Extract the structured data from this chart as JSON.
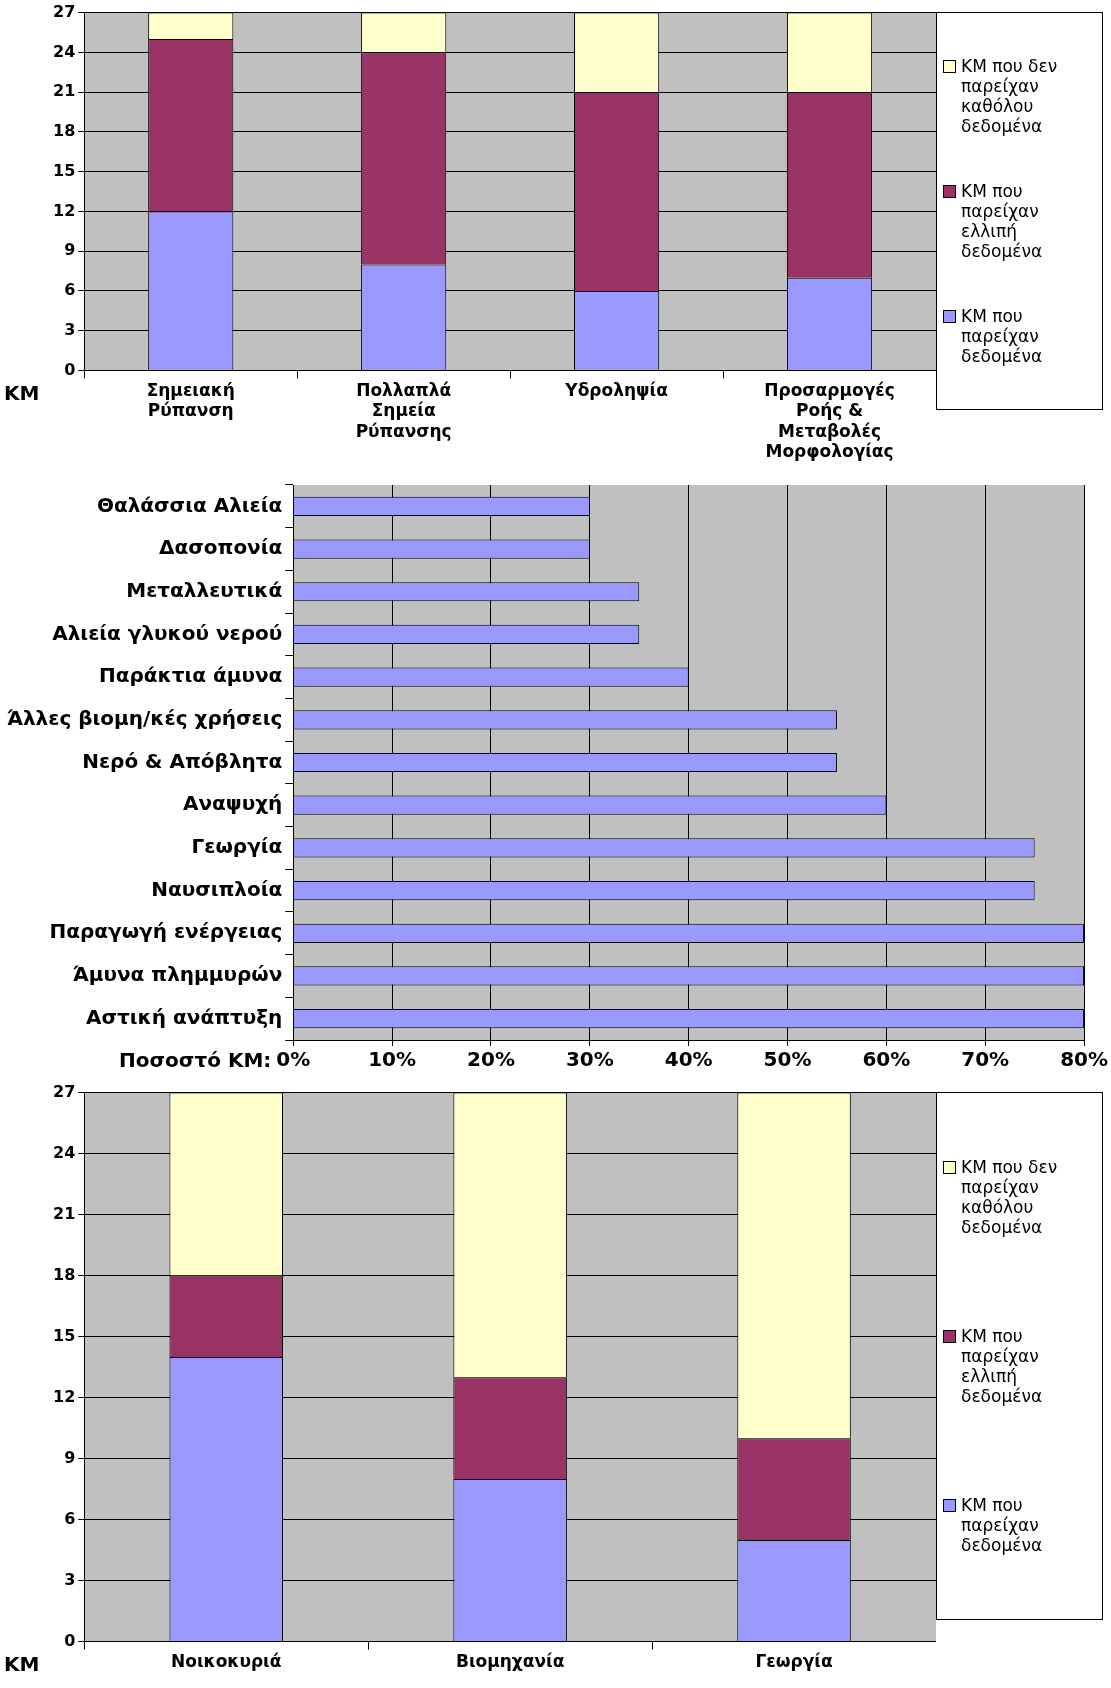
{
  "chart_data": [
    {
      "type": "bar",
      "stacked": true,
      "ylabel": "ΚΜ",
      "categories": [
        "Σημειακή Ρύπανση",
        "Πολλαπλά Σημεία Ρύπανσης",
        "Υδροληψία",
        "Προσαρμογές Ροής & Μεταβολές Μορφολογίας"
      ],
      "series": [
        {
          "name": "ΚΜ που παρείχαν δεδομένα",
          "color": "#9999ff",
          "values": [
            12,
            8,
            6,
            7
          ]
        },
        {
          "name": "ΚΜ που παρείχαν ελλιπή δεδομένα",
          "color": "#993366",
          "values": [
            13,
            16,
            15,
            14
          ]
        },
        {
          "name": "ΚΜ που δεν παρείχαν καθόλου δεδομένα",
          "color": "#ffffcc",
          "values": [
            2,
            3,
            6,
            6
          ]
        }
      ],
      "ylim": [
        0,
        27
      ],
      "yticks": [
        0,
        3,
        6,
        9,
        12,
        15,
        18,
        21,
        24,
        27
      ],
      "grid": "y",
      "legend": "right"
    },
    {
      "type": "bar",
      "orientation": "horizontal",
      "xlabel": "Ποσοστό ΚΜ:",
      "categories": [
        "Θαλάσσια Αλιεία",
        "Δασοπονία",
        "Μεταλλευτικά",
        "Αλιεία γλυκού νερού",
        "Παράκτια άμυνα",
        "Άλλες βιομη/κές χρήσεις",
        "Νερό & Απόβλητα",
        "Αναψυχή",
        "Γεωργία",
        "Ναυσιπλοία",
        "Παραγωγή ενέργειας",
        "Άμυνα πλημμυρών",
        "Αστική ανάπτυξη"
      ],
      "values": [
        30,
        30,
        35,
        35,
        40,
        55,
        55,
        60,
        75,
        75,
        80,
        80,
        80
      ],
      "color": "#9999ff",
      "xlim": [
        0,
        80
      ],
      "xticks": [
        {
          "value": 0,
          "label": "0%"
        },
        {
          "value": 10,
          "label": "10%"
        },
        {
          "value": 20,
          "label": "20%"
        },
        {
          "value": 30,
          "label": "30%"
        },
        {
          "value": 40,
          "label": "40%"
        },
        {
          "value": 50,
          "label": "50%"
        },
        {
          "value": 60,
          "label": "60%"
        },
        {
          "value": 70,
          "label": "70%"
        },
        {
          "value": 80,
          "label": "80%"
        }
      ],
      "grid": "x"
    },
    {
      "type": "bar",
      "stacked": true,
      "ylabel": "ΚΜ",
      "categories": [
        "Νοικοκυριά",
        "Βιομηχανία",
        "Γεωργία"
      ],
      "series": [
        {
          "name": "ΚΜ που παρείχαν δεδομένα",
          "color": "#9999ff",
          "values": [
            14,
            8,
            5
          ]
        },
        {
          "name": "ΚΜ που παρείχαν ελλιπή δεδομένα",
          "color": "#993366",
          "values": [
            4,
            5,
            5
          ]
        },
        {
          "name": "ΚΜ που δεν παρείχαν καθόλου δεδομένα",
          "color": "#ffffcc",
          "values": [
            9,
            14,
            17
          ]
        }
      ],
      "ylim": [
        0,
        27
      ],
      "yticks": [
        0,
        3,
        6,
        9,
        12,
        15,
        18,
        21,
        24,
        27
      ],
      "grid": "y",
      "legend": "right"
    }
  ]
}
